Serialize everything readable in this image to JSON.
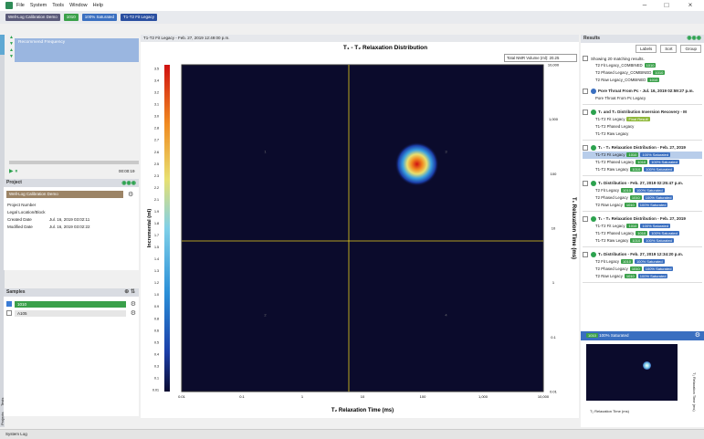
{
  "menu": {
    "items": [
      "File",
      "System",
      "Tools",
      "Window",
      "Help"
    ]
  },
  "breadcrumb": {
    "items": [
      "Well-Log Calibration Demo",
      "1010",
      "100% Saturated",
      "T1-T2 Fit Legacy"
    ]
  },
  "left": {
    "tree_label": "Recommend Frequency",
    "time": "00:00:19",
    "project_header": "Project",
    "project_name": "Well-Log Calibration Demo",
    "fields": [
      {
        "k": "Project Number",
        "v": ""
      },
      {
        "k": "Legal Location/Block",
        "v": ""
      },
      {
        "k": "Created Date",
        "v": "Jul. 16, 2019 03:02:11"
      },
      {
        "k": "Modified Date",
        "v": "Jul. 16, 2019 03:02:22"
      }
    ],
    "samples_header": "Samples",
    "samples": [
      "1010",
      "A105"
    ],
    "bottom_tabs": [
      "Projects",
      "Tests"
    ]
  },
  "main": {
    "tab": "T1-T2 Fit Legacy - Feb. 27, 2019 12:49:00 p.m.",
    "total_volume_label": "Total NMR Volume (ml):",
    "total_volume_value": "20.25"
  },
  "chart_data": {
    "type": "heatmap",
    "title": "T₁ - T₂ Relaxation Distribution",
    "xlabel": "T₂ Relaxation Time (ms)",
    "ylabel": "T₁ Relaxation Time (ms)",
    "colorbar_label": "Incremental (ml)",
    "x_ticks": [
      "0.01",
      "0.1",
      "1",
      "10",
      "100",
      "1,000",
      "10,000"
    ],
    "y_ticks": [
      "10,000",
      "1,000",
      "100",
      "10",
      "1",
      "0.1",
      "0.01"
    ],
    "colorbar_ticks": [
      "3.5",
      "3.4",
      "3.2",
      "3.1",
      "3.0",
      "2.8",
      "2.7",
      "2.6",
      "2.5",
      "2.3",
      "2.2",
      "2.1",
      "1.9",
      "1.8",
      "1.7",
      "1.5",
      "1.4",
      "1.3",
      "1.2",
      "1.0",
      "0.9",
      "0.8",
      "0.6",
      "0.5",
      "0.4",
      "0.3",
      "0.1",
      "0.01"
    ],
    "xlim": [
      0.01,
      10000
    ],
    "ylim": [
      0.01,
      10000
    ],
    "scale": "log",
    "quadrant_labels": [
      "1",
      "2",
      "3",
      "4"
    ],
    "peak": {
      "x": 80,
      "y": 150
    }
  },
  "right": {
    "header": "Results",
    "buttons": [
      "Labels",
      "Sort",
      "Group"
    ],
    "showing": "Showing 20 matching results.",
    "pre_items": [
      "T2 Fit Legacy_COMBINED",
      "T2 Phased Legacy_COMBINED",
      "T2 Raw Legacy_COMBINED"
    ],
    "groups": [
      {
        "title": "Pore Throat From Pc - Jul. 16, 2019 02:59:27 p.m.",
        "items": [
          "Pore Throat From Pc Legacy"
        ]
      },
      {
        "title": "T₁ and T₂ Distribution Inversion Recovery - M",
        "items": [
          "T1-T2 Fit Legacy",
          "T1-T2 Phased Legacy",
          "T1-T2 Raw Legacy"
        ]
      },
      {
        "title": "T₁ - T₂ Relaxation Distribution - Feb. 27, 2019",
        "items": [
          "T1-T2 Fit Legacy",
          "T1-T2 Phased Legacy",
          "T1-T2 Raw Legacy"
        ]
      },
      {
        "title": "T₂ Distribution - Feb. 27, 2019 02:25:47 p.m.",
        "items": [
          "T2 Fit Legacy",
          "T2 Phased Legacy",
          "T2 Raw Legacy"
        ]
      },
      {
        "title": "T₁ - T₂ Relaxation Distribution - Feb. 27, 2019",
        "items": [
          "T1-T2 Fit Legacy",
          "T1-T2 Phased Legacy",
          "T1-T2 Raw Legacy"
        ]
      },
      {
        "title": "T₂ Distribution - Feb. 27, 2019 12:34:20 p.m.",
        "items": [
          "T2 Fit Legacy",
          "T2 Phased Legacy",
          "T2 Raw Legacy"
        ]
      }
    ],
    "tags": {
      "t1010": "1010",
      "sat": "100% Saturated",
      "final": "Final Result"
    },
    "preview_header": "100% Saturated",
    "preview_xlabel": "T₂ Relaxation Time (ms)",
    "preview_ylabel": "T₁ Relaxation Time (ms)"
  },
  "status": {
    "log": "System Log"
  }
}
